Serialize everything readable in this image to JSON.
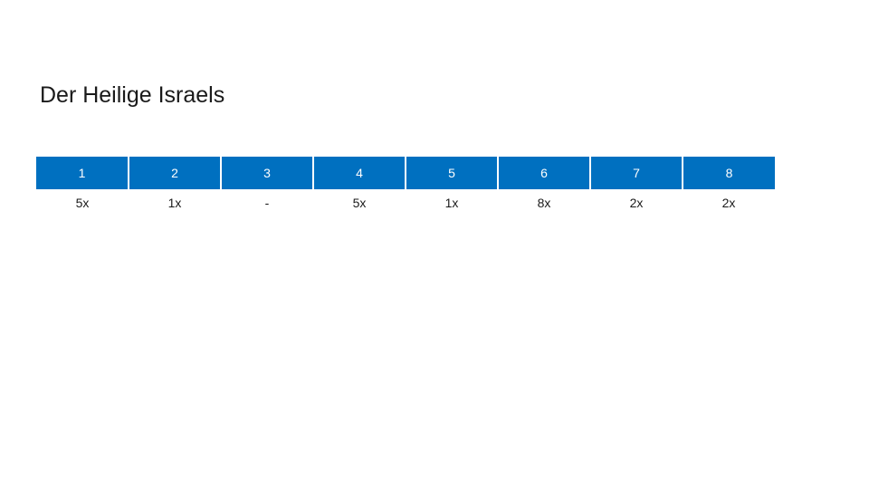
{
  "slide": {
    "title": "Der Heilige Israels"
  },
  "table": {
    "headers": [
      "1",
      "2",
      "3",
      "4",
      "5",
      "6",
      "7",
      "8"
    ],
    "row": [
      "5x",
      "1x",
      "-",
      "5x",
      "1x",
      "8x",
      "2x",
      "2x"
    ]
  },
  "colors": {
    "header_background": "#0070c0",
    "header_text": "#ffffff"
  }
}
